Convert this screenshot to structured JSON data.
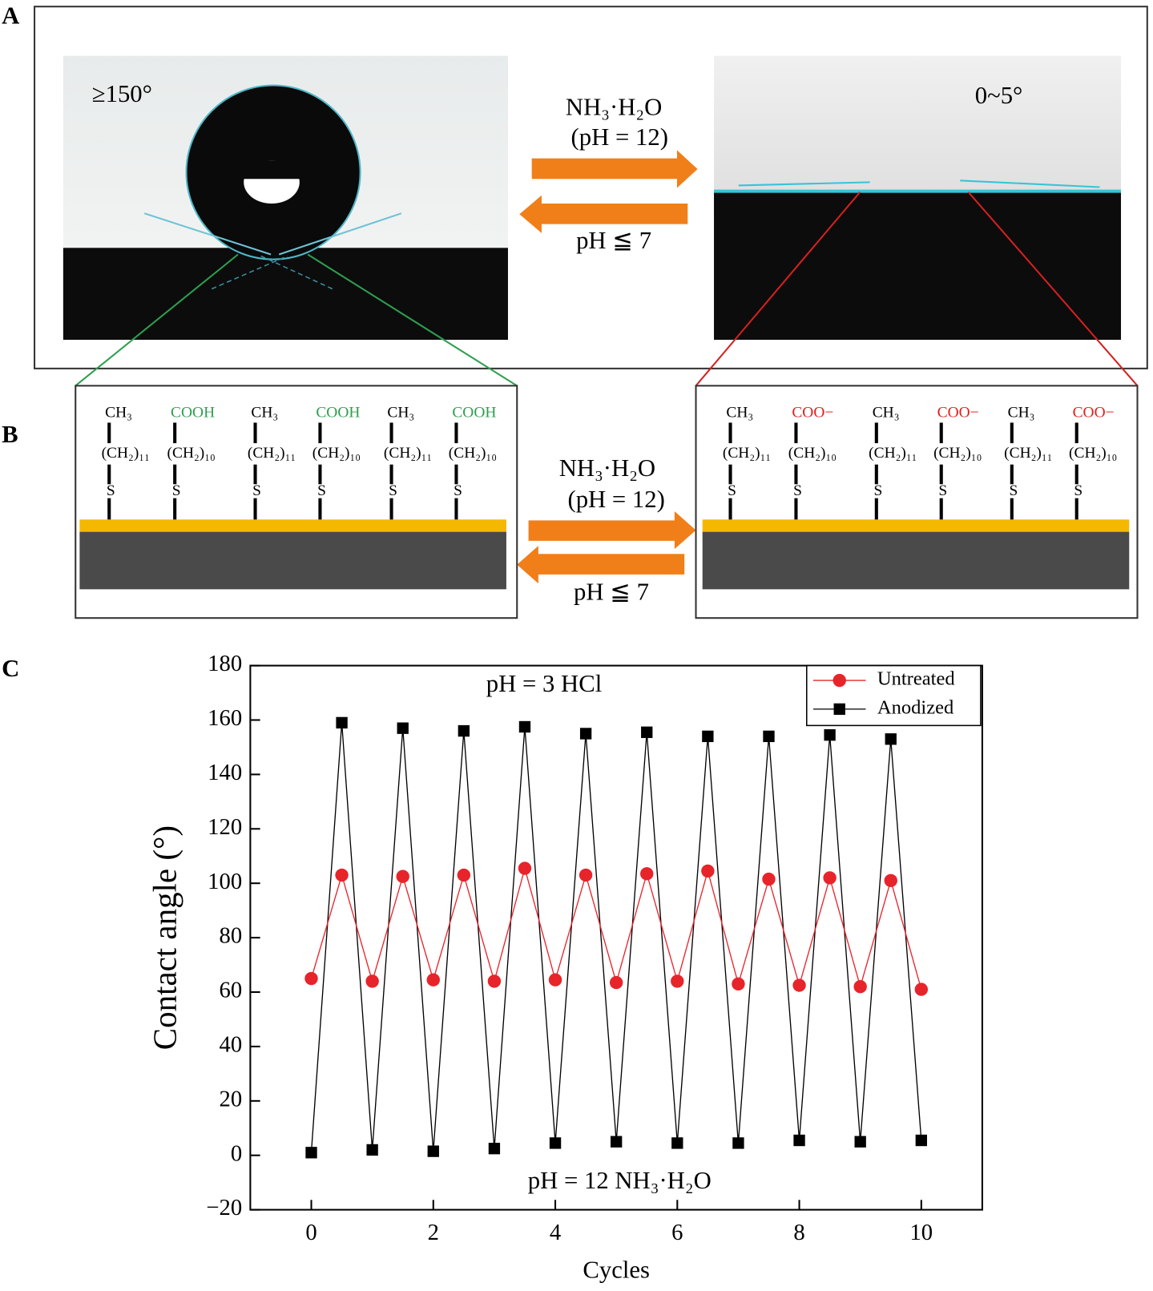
{
  "panel_labels": [
    "A",
    "B",
    "C"
  ],
  "panel_a": {
    "left_angle": "≥150°",
    "right_angle": "0~5°",
    "forward": "NH₃·H₂O",
    "forward_ph": "(pH = 12)",
    "reverse": "pH ≦ 7"
  },
  "panel_b": {
    "forward": "NH₃·H₂O",
    "forward_ph": "(pH = 12)",
    "reverse": "pH ≦ 7",
    "left": [
      {
        "head": "CH₃",
        "color": "#000000",
        "chain": "(CH₂)₁₁",
        "anchor": "S"
      },
      {
        "head": "COOH",
        "color": "#2e9e4f",
        "chain": "(CH₂)₁₀",
        "anchor": "S"
      },
      {
        "head": "CH₃",
        "color": "#000000",
        "chain": "(CH₂)₁₁",
        "anchor": "S"
      },
      {
        "head": "COOH",
        "color": "#2e9e4f",
        "chain": "(CH₂)₁₀",
        "anchor": "S"
      },
      {
        "head": "CH₃",
        "color": "#000000",
        "chain": "(CH₂)₁₁",
        "anchor": "S"
      },
      {
        "head": "COOH",
        "color": "#2e9e4f",
        "chain": "(CH₂)₁₀",
        "anchor": "S"
      }
    ],
    "right": [
      {
        "head": "CH₃",
        "color": "#000000",
        "chain": "(CH₂)₁₁",
        "anchor": "S"
      },
      {
        "head": "COO−",
        "color": "#e0201b",
        "chain": "(CH₂)₁₀",
        "anchor": "S"
      },
      {
        "head": "CH₃",
        "color": "#000000",
        "chain": "(CH₂)₁₁",
        "anchor": "S"
      },
      {
        "head": "COO−",
        "color": "#e0201b",
        "chain": "(CH₂)₁₀",
        "anchor": "S"
      },
      {
        "head": "CH₃",
        "color": "#000000",
        "chain": "(CH₂)₁₁",
        "anchor": "S"
      },
      {
        "head": "COO−",
        "color": "#e0201b",
        "chain": "(CH₂)₁₀",
        "anchor": "S"
      }
    ]
  },
  "chart_data": {
    "type": "line",
    "xlabel": "Cycles",
    "ylabel": "Contact angle (°)",
    "annotations": [
      "pH = 3 HCl",
      "pH = 12 NH₃·H₂O"
    ],
    "x": [
      0,
      0.5,
      1,
      1.5,
      2,
      2.5,
      3,
      3.5,
      4,
      4.5,
      5,
      5.5,
      6,
      6.5,
      7,
      7.5,
      8,
      8.5,
      9,
      9.5,
      10
    ],
    "series": [
      {
        "name": "Untreated",
        "color": "#e8242b",
        "marker": "circle",
        "values": [
          65,
          103,
          64,
          102.5,
          64.5,
          103,
          64,
          105.5,
          64.5,
          103,
          63.5,
          103.5,
          64,
          104.5,
          63,
          101.5,
          62.5,
          102,
          62,
          101,
          61
        ]
      },
      {
        "name": "Anodized",
        "color": "#000000",
        "marker": "square",
        "values": [
          1,
          159,
          2,
          157,
          1.5,
          156,
          2.5,
          157.5,
          4.5,
          155,
          5,
          155.5,
          4.5,
          154,
          4.5,
          154,
          5.5,
          154.5,
          5,
          153,
          5.5
        ]
      }
    ],
    "xlim": [
      -1,
      11
    ],
    "ylim": [
      -20,
      180
    ],
    "xticks": [
      0,
      2,
      4,
      6,
      8,
      10
    ],
    "yticks": [
      {
        "value": -20,
        "label": "−20"
      },
      0,
      20,
      40,
      60,
      80,
      100,
      120,
      140,
      160,
      180
    ],
    "legend": "upper right"
  }
}
